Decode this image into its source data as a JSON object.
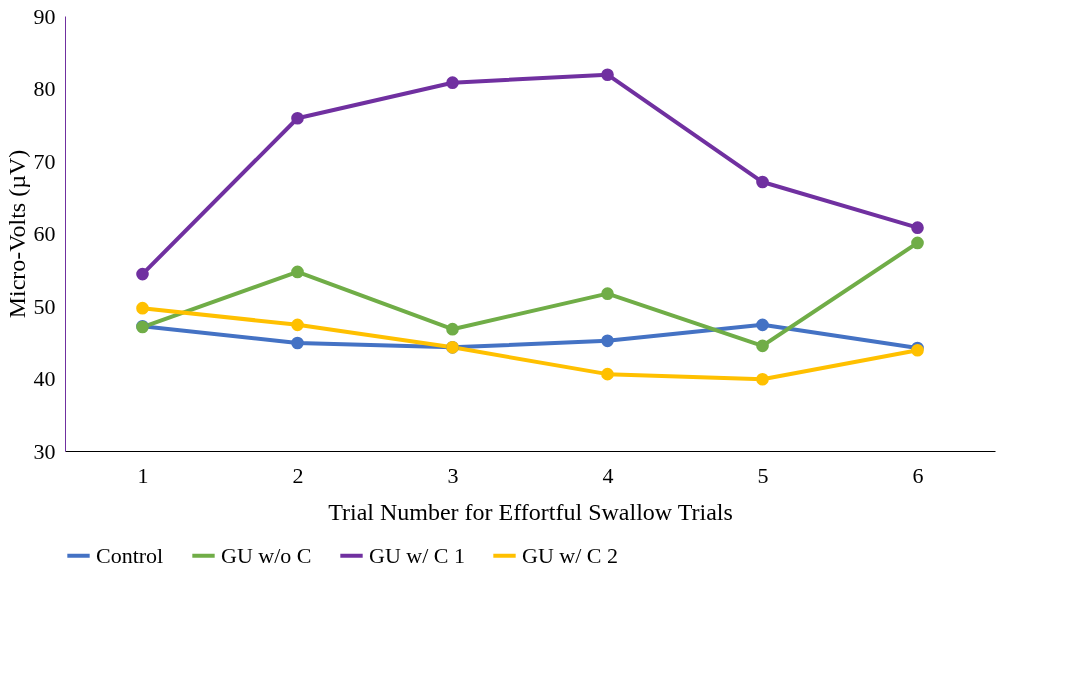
{
  "chart_data": {
    "type": "line",
    "xlabel": "Trial Number for Effortful Swallow Trials",
    "ylabel": "Micro-Volts (µV)",
    "categories": [
      "1",
      "2",
      "3",
      "4",
      "5",
      "6"
    ],
    "ylim": [
      30,
      90
    ],
    "yticks": [
      30,
      40,
      50,
      60,
      70,
      80,
      90
    ],
    "grid": false,
    "legend": "bottom",
    "marker": "circle",
    "line_style": "solid",
    "series": [
      {
        "name": "Control",
        "color": "#4472c4",
        "values": [
          47.2,
          44.9,
          44.3,
          45.2,
          47.4,
          44.2
        ]
      },
      {
        "name": "GU w/o C",
        "color": "#70ad47",
        "values": [
          47.1,
          54.7,
          46.8,
          51.7,
          44.5,
          58.7
        ]
      },
      {
        "name": "GU w/ C 1",
        "color": "#7030a0",
        "values": [
          54.4,
          75.9,
          80.8,
          81.9,
          67.1,
          60.8
        ]
      },
      {
        "name": "GU w/ C 2",
        "color": "#ffc000",
        "values": [
          49.7,
          47.4,
          44.3,
          40.6,
          39.9,
          43.9
        ]
      }
    ]
  }
}
